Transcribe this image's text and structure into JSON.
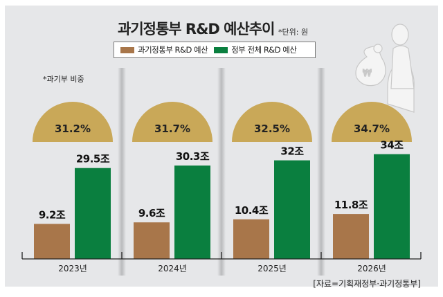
{
  "chart_data": {
    "type": "bar",
    "title": "과기정통부 R&D 예산추이",
    "unit_note": "*단위: 원",
    "categories": [
      "2023년",
      "2024년",
      "2025년",
      "2026년"
    ],
    "series": [
      {
        "name": "과기정통부 R&D 예산",
        "values": [
          9.2,
          9.6,
          10.4,
          11.8
        ],
        "labels": [
          "9.2조",
          "9.6조",
          "10.4조",
          "11.8조"
        ],
        "color": "#a8764a"
      },
      {
        "name": "정부 전체 R&D 예산",
        "values": [
          29.5,
          30.3,
          32,
          34
        ],
        "labels": [
          "29.5조",
          "30.3조",
          "32조",
          "34조"
        ],
        "color": "#0a7f3f"
      }
    ],
    "share": {
      "label": "*과기부 비중",
      "values": [
        "31.2%",
        "31.7%",
        "32.5%",
        "34.7%"
      ],
      "color": "#c9a858"
    },
    "source": "[자료=기획재정부·과기정통부]"
  },
  "icon": "person-with-money-bag-icon"
}
